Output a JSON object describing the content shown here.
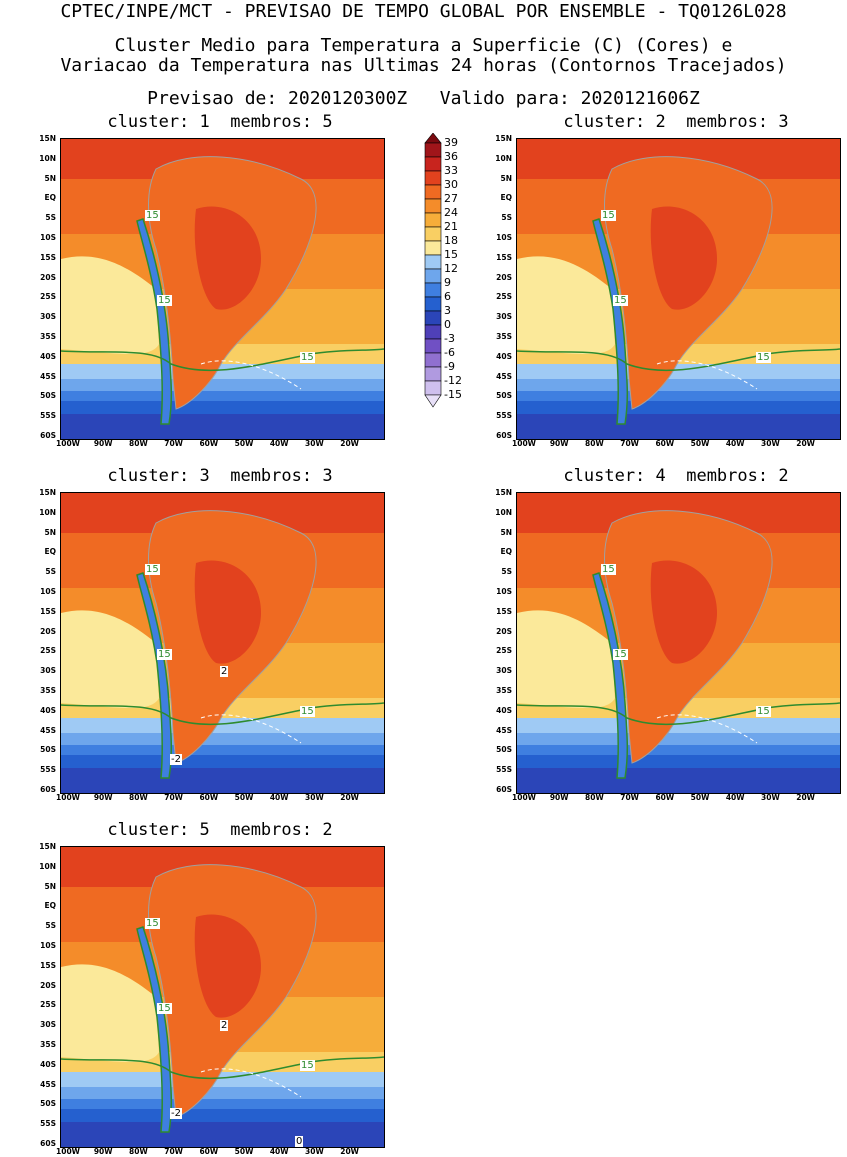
{
  "header": {
    "line1": "CPTEC/INPE/MCT - PREVISAO DE TEMPO GLOBAL POR ENSEMBLE - TQ0126L028",
    "line2": "Cluster Medio para Temperatura a Superficie (C) (Cores) e",
    "line3": "Variacao da Temperatura nas Ultimas 24 horas (Contornos Tracejados)",
    "line4": "Previsao de: 2020120300Z   Valido para: 2020121606Z"
  },
  "panels": [
    {
      "title": "cluster: 1  membros: 5",
      "contour_labels": [
        "15",
        "15",
        "15"
      ]
    },
    {
      "title": "cluster: 2  membros: 3",
      "contour_labels": [
        "15",
        "15",
        "15"
      ]
    },
    {
      "title": "cluster: 3  membros: 3",
      "contour_labels": [
        "15",
        "15",
        "15",
        "2",
        "-2"
      ]
    },
    {
      "title": "cluster: 4  membros: 2",
      "contour_labels": [
        "15",
        "15",
        "15"
      ]
    },
    {
      "title": "cluster: 5  membros: 2",
      "contour_labels": [
        "15",
        "15",
        "15",
        "2",
        "-2",
        "0"
      ]
    }
  ],
  "axes": {
    "lat_labels": [
      "15N",
      "10N",
      "5N",
      "EQ",
      "5S",
      "10S",
      "15S",
      "20S",
      "25S",
      "30S",
      "35S",
      "40S",
      "45S",
      "50S",
      "55S",
      "60S"
    ],
    "lon_labels": [
      "100W",
      "90W",
      "80W",
      "70W",
      "60W",
      "50W",
      "40W",
      "30W",
      "20W"
    ]
  },
  "colorbar": {
    "labels": [
      "39",
      "36",
      "33",
      "30",
      "27",
      "24",
      "21",
      "18",
      "15",
      "12",
      "9",
      "6",
      "3",
      "0",
      "-3",
      "-6",
      "-9",
      "-12",
      "-15"
    ],
    "colors": [
      "#7a0a10",
      "#a0151a",
      "#c8241e",
      "#e2421e",
      "#ef6a22",
      "#f48c2a",
      "#f6ad3a",
      "#f9cf63",
      "#fbe99a",
      "#9fcaf4",
      "#6ea6ec",
      "#3f7fe0",
      "#2560cf",
      "#2b45b8",
      "#4f40b8",
      "#7050c4",
      "#9070d0",
      "#b09ae0",
      "#cfc0ee",
      "#e8e0f8"
    ]
  },
  "colors": {
    "contour_15": "#2e8b2e",
    "land_border": "#a0a0a0",
    "dashed_change": "#ffffff"
  }
}
